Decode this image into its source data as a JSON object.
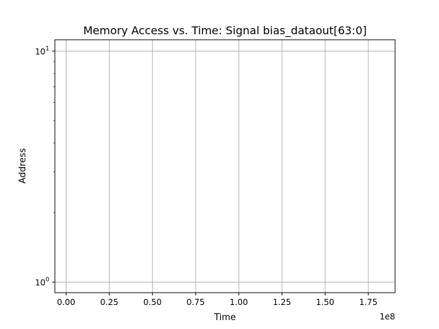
{
  "chart_data": {
    "type": "scatter",
    "title": "Memory Access vs. Time: Signal bias_dataout[63:0]",
    "xlabel": "Time",
    "ylabel": "Address",
    "x_offset_label": "1e8",
    "xscale": "linear",
    "yscale": "log",
    "xlim": [
      -0.065,
      1.905
    ],
    "ylim": [
      0.9,
      11.2
    ],
    "x_ticks": [
      {
        "value": 0.0,
        "label": "0.00"
      },
      {
        "value": 0.25,
        "label": "0.25"
      },
      {
        "value": 0.5,
        "label": "0.50"
      },
      {
        "value": 0.75,
        "label": "0.75"
      },
      {
        "value": 1.0,
        "label": "1.00"
      },
      {
        "value": 1.25,
        "label": "1.25"
      },
      {
        "value": 1.5,
        "label": "1.50"
      },
      {
        "value": 1.75,
        "label": "1.75"
      }
    ],
    "y_ticks": [
      {
        "value": 1,
        "base": "10",
        "exp": "0"
      },
      {
        "value": 10,
        "base": "10",
        "exp": "1"
      }
    ],
    "y_minor_ticks": [
      2,
      3,
      4,
      5,
      6,
      7,
      8,
      9
    ],
    "grid": true,
    "series": [],
    "colors": {
      "grid": "#b0b0b0",
      "axis": "#000000"
    }
  }
}
